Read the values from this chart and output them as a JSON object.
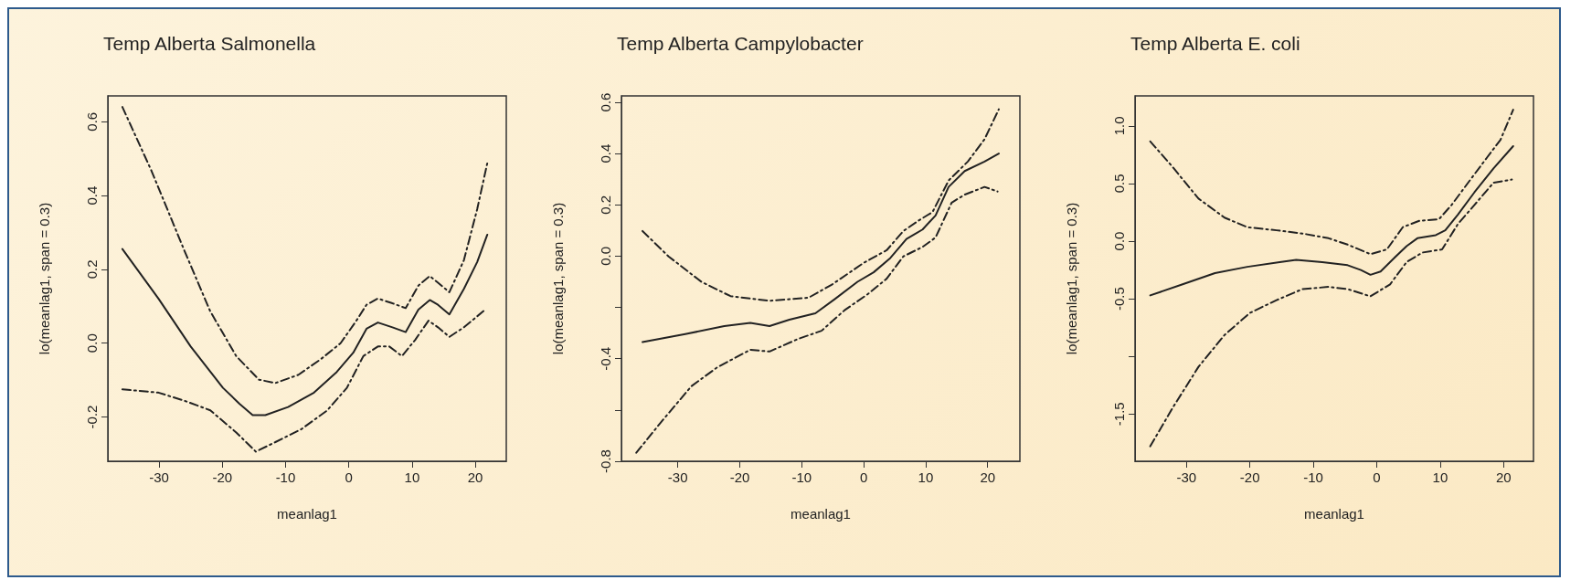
{
  "chart_data": [
    {
      "type": "line",
      "title": "Temp Alberta Salmonella",
      "xlabel": "meanlag1",
      "ylabel": "lo(meanlag1, span = 0.3)",
      "xlim": [
        -38.1,
        24.9
      ],
      "xticks": [
        -30,
        -20,
        -10,
        0,
        10,
        20
      ],
      "ylim": [
        -0.32,
        0.67
      ],
      "yticks": [
        {
          "value": -0.2,
          "label": "-0.2"
        },
        {
          "value": 0,
          "label": "0.0"
        },
        {
          "value": 0.2,
          "label": "0.2"
        },
        {
          "value": 0.4,
          "label": "0.4"
        },
        {
          "value": 0.6,
          "label": "0.6"
        }
      ],
      "grid": false,
      "marker": "none",
      "series": [
        {
          "color": "#222222",
          "line_style": "solid",
          "x": [
            -35.8,
            -30.1,
            -25,
            -19.9,
            -17.3,
            -15.2,
            -13.2,
            -9.6,
            -5.5,
            -1.9,
            0.7,
            2.8,
            4.6,
            6.9,
            9,
            11,
            12.8,
            14.1,
            15.9,
            18.2,
            20.3,
            21.9
          ],
          "values": [
            0.255,
            0.121,
            -0.009,
            -0.121,
            -0.164,
            -0.195,
            -0.195,
            -0.173,
            -0.134,
            -0.078,
            -0.026,
            0.039,
            0.056,
            0.043,
            0.03,
            0.091,
            0.117,
            0.104,
            0.078,
            0.147,
            0.22,
            0.294
          ]
        },
        {
          "color": "#222222",
          "line_style": "dashdot",
          "x": [
            -35.8,
            -31.2,
            -26,
            -21.9,
            -17.8,
            -14.2,
            -11.6,
            -8,
            -4.4,
            -1.3,
            1.2,
            2.8,
            4.6,
            6.9,
            9,
            11,
            12.8,
            14.1,
            15.9,
            18.2,
            20.3,
            21.9
          ],
          "values": [
            0.64,
            0.467,
            0.251,
            0.086,
            -0.035,
            -0.099,
            -0.108,
            -0.086,
            -0.043,
            0,
            0.061,
            0.104,
            0.121,
            0.108,
            0.095,
            0.156,
            0.182,
            0.164,
            0.138,
            0.225,
            0.363,
            0.488
          ]
        },
        {
          "color": "#222222",
          "line_style": "dashdot",
          "x": [
            -35.8,
            -30.1,
            -26,
            -21.9,
            -17.8,
            -14.7,
            -11.6,
            -7.5,
            -3.4,
            -0.3,
            2.3,
            4.6,
            6.4,
            8.4,
            10.5,
            12.6,
            14.1,
            15.9,
            18.2,
            21.3
          ],
          "values": [
            -0.125,
            -0.134,
            -0.156,
            -0.182,
            -0.242,
            -0.294,
            -0.268,
            -0.233,
            -0.182,
            -0.121,
            -0.035,
            -0.009,
            -0.009,
            -0.035,
            0.009,
            0.061,
            0.043,
            0.017,
            0.043,
            0.087
          ]
        }
      ]
    },
    {
      "type": "line",
      "title": "Temp Alberta Campylobacter",
      "xlabel": "meanlag1",
      "ylabel": "lo(meanlag1, span = 0.3)",
      "xlim": [
        -39.1,
        25.2
      ],
      "xticks": [
        -30,
        -20,
        -10,
        0,
        10,
        20
      ],
      "ylim": [
        -0.8,
        0.625
      ],
      "yticks": [
        {
          "value": -0.8,
          "label": "-0.8"
        },
        {
          "value": -0.6,
          "label": null
        },
        {
          "value": -0.4,
          "label": "-0.4"
        },
        {
          "value": -0.2,
          "label": null
        },
        {
          "value": 0,
          "label": "0.0"
        },
        {
          "value": 0.2,
          "label": "0.2"
        },
        {
          "value": 0.4,
          "label": "0.4"
        },
        {
          "value": 0.6,
          "label": "0.6"
        }
      ],
      "grid": false,
      "marker": "none",
      "series": [
        {
          "color": "#222222",
          "line_style": "solid",
          "x": [
            -35.7,
            -28.8,
            -22.5,
            -18.3,
            -15.2,
            -12,
            -7.8,
            -4.7,
            -1,
            1.6,
            4.3,
            6.9,
            9.5,
            11.6,
            13.7,
            16.3,
            19.5,
            21.8
          ],
          "values": [
            -0.335,
            -0.304,
            -0.273,
            -0.26,
            -0.273,
            -0.248,
            -0.223,
            -0.168,
            -0.1,
            -0.063,
            -0.007,
            0.067,
            0.104,
            0.159,
            0.27,
            0.332,
            0.369,
            0.4
          ]
        },
        {
          "color": "#222222",
          "line_style": "dashdot",
          "x": [
            -35.7,
            -31.5,
            -26.2,
            -21.5,
            -15.2,
            -8.9,
            -5.2,
            0,
            3.7,
            6.4,
            9,
            11.1,
            13.7,
            16.8,
            19.5,
            21.8
          ],
          "values": [
            0.098,
            -0.001,
            -0.1,
            -0.156,
            -0.174,
            -0.162,
            -0.112,
            -0.026,
            0.023,
            0.098,
            0.141,
            0.172,
            0.295,
            0.369,
            0.456,
            0.573
          ]
        },
        {
          "color": "#222222",
          "line_style": "dashdot",
          "x": [
            -36.7,
            -33,
            -27.8,
            -23.6,
            -18.3,
            -15.2,
            -10.5,
            -6.8,
            -3.1,
            0.6,
            3.7,
            6.4,
            9.5,
            11.6,
            14.2,
            16.3,
            19.5,
            21.6
          ],
          "values": [
            -0.767,
            -0.656,
            -0.507,
            -0.433,
            -0.365,
            -0.372,
            -0.322,
            -0.291,
            -0.211,
            -0.149,
            -0.088,
            -0.001,
            0.036,
            0.073,
            0.209,
            0.24,
            0.27,
            0.252
          ]
        }
      ]
    },
    {
      "type": "line",
      "title": "Temp Alberta E. coli",
      "xlabel": "meanlag1",
      "ylabel": "lo(meanlag1, span = 0.3)",
      "xlim": [
        -38.1,
        24.7
      ],
      "xticks": [
        -30,
        -20,
        -10,
        0,
        10,
        20
      ],
      "ylim": [
        -1.91,
        1.26
      ],
      "yticks": [
        {
          "value": -1.5,
          "label": "-1.5"
        },
        {
          "value": -1,
          "label": null
        },
        {
          "value": -0.5,
          "label": "-0.5"
        },
        {
          "value": 0,
          "label": "0.0"
        },
        {
          "value": 0.5,
          "label": "0.5"
        },
        {
          "value": 1,
          "label": "1.0"
        }
      ],
      "grid": false,
      "marker": "none",
      "series": [
        {
          "color": "#222222",
          "line_style": "solid",
          "x": [
            -35.7,
            -30.6,
            -25.5,
            -20.4,
            -15.3,
            -12.7,
            -8.6,
            -4.6,
            -2.5,
            -1,
            0.6,
            2.6,
            4.7,
            6.4,
            9.3,
            10.8,
            12.8,
            15.4,
            18.4,
            21.5
          ],
          "values": [
            -0.471,
            -0.375,
            -0.278,
            -0.223,
            -0.182,
            -0.163,
            -0.182,
            -0.209,
            -0.251,
            -0.292,
            -0.264,
            -0.154,
            -0.044,
            0.025,
            0.052,
            0.094,
            0.231,
            0.424,
            0.631,
            0.824
          ]
        },
        {
          "color": "#222222",
          "line_style": "dashdot",
          "x": [
            -35.7,
            -32.2,
            -28.1,
            -24,
            -20.4,
            -15.8,
            -11.7,
            -7.6,
            -4.6,
            -1,
            1.6,
            4.1,
            6.7,
            9.8,
            11.8,
            14.4,
            17.4,
            19.5,
            21.5
          ],
          "values": [
            0.865,
            0.645,
            0.369,
            0.204,
            0.121,
            0.094,
            0.066,
            0.025,
            -0.03,
            -0.113,
            -0.072,
            0.121,
            0.176,
            0.19,
            0.314,
            0.507,
            0.727,
            0.879,
            1.14
          ]
        },
        {
          "color": "#222222",
          "line_style": "dashdot",
          "x": [
            -35.7,
            -32.2,
            -28.1,
            -24,
            -20,
            -15.8,
            -11.7,
            -7.6,
            -4.6,
            -1,
            2.1,
            4.7,
            7.2,
            10.3,
            12.8,
            15.4,
            18.4,
            21.3
          ],
          "values": [
            -1.78,
            -1.449,
            -1.091,
            -0.815,
            -0.623,
            -0.512,
            -0.416,
            -0.397,
            -0.416,
            -0.479,
            -0.375,
            -0.182,
            -0.099,
            -0.072,
            0.149,
            0.314,
            0.507,
            0.534
          ]
        }
      ]
    }
  ]
}
